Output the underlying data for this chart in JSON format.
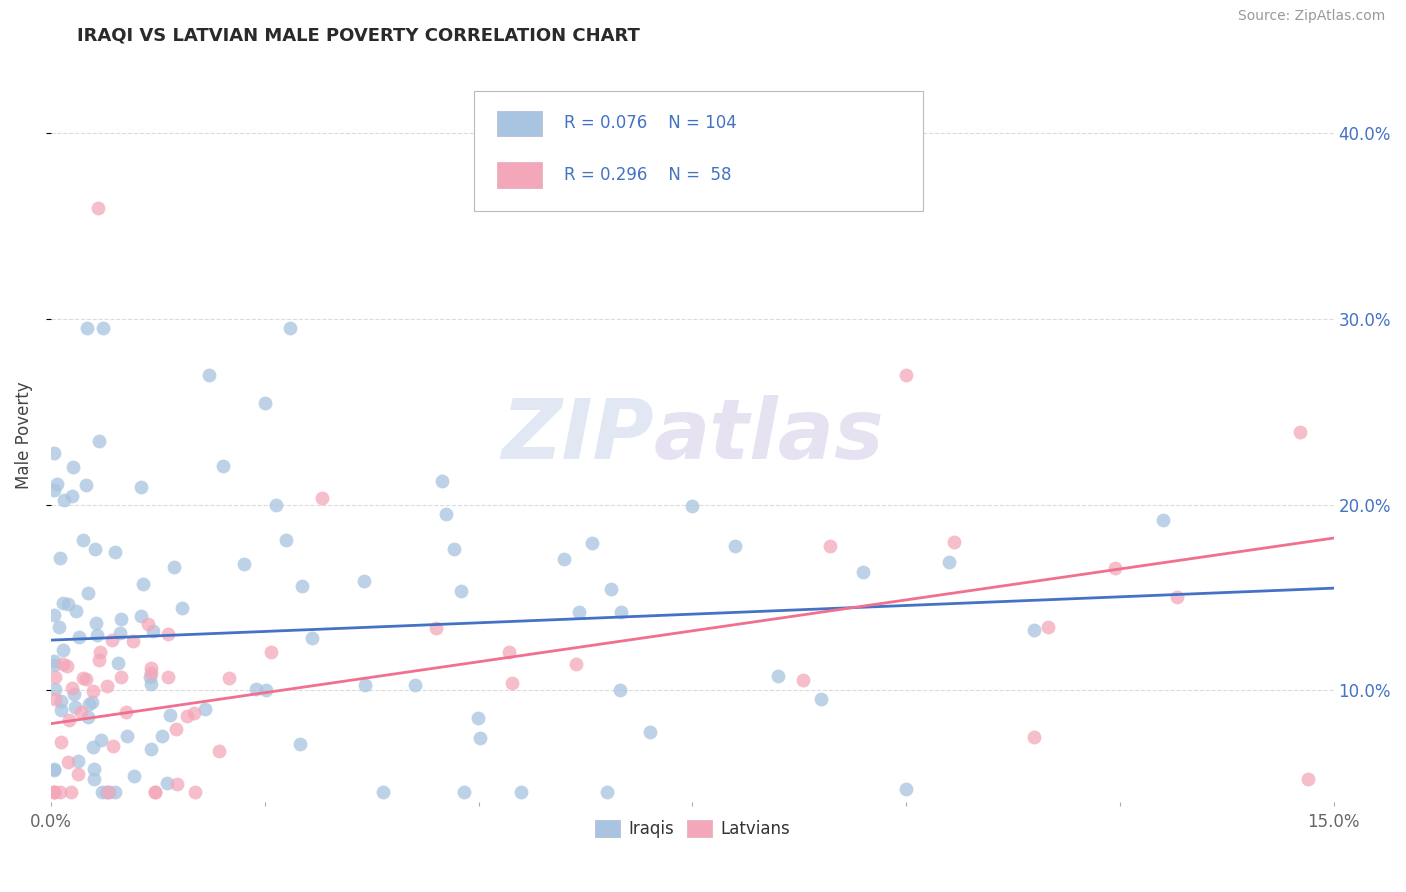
{
  "title": "IRAQI VS LATVIAN MALE POVERTY CORRELATION CHART",
  "source": "Source: ZipAtlas.com",
  "ylabel": "Male Poverty",
  "yticks": [
    0.1,
    0.2,
    0.3,
    0.4
  ],
  "ytick_labels": [
    "10.0%",
    "20.0%",
    "30.0%",
    "40.0%"
  ],
  "xlim": [
    0.0,
    0.15
  ],
  "ylim": [
    0.04,
    0.435
  ],
  "iraqi_color": "#a8c4e0",
  "latvian_color": "#f4a7b9",
  "iraqi_line_color": "#4472c4",
  "latvian_line_color": "#f07090",
  "R_iraqi": 0.076,
  "N_iraqi": 104,
  "R_latvian": 0.296,
  "N_latvian": 58,
  "background_color": "#ffffff",
  "grid_color": "#cccccc",
  "watermark_zip": "ZIP",
  "watermark_atlas": "atlas",
  "iraqi_line_x0": 0.0,
  "iraqi_line_y0": 0.127,
  "iraqi_line_x1": 0.15,
  "iraqi_line_y1": 0.155,
  "latvian_line_x0": 0.0,
  "latvian_line_y0": 0.082,
  "latvian_line_x1": 0.15,
  "latvian_line_y1": 0.182
}
